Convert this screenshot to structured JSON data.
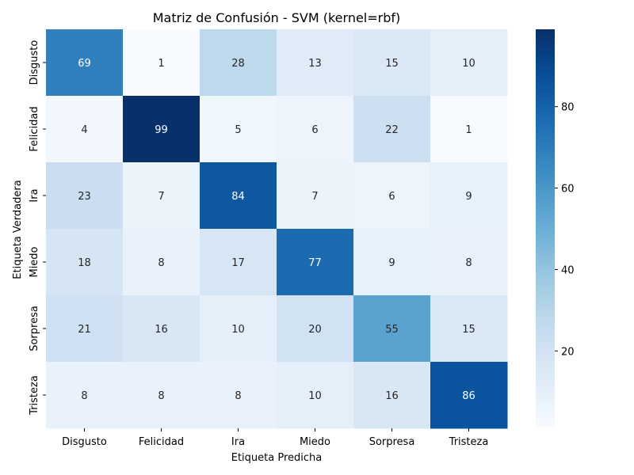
{
  "chart_data": {
    "type": "heatmap",
    "title": "Matriz de Confusión - SVM (kernel=rbf)",
    "xlabel": "Etiqueta Predicha",
    "ylabel": "Etiqueta Verdadera",
    "x_categories": [
      "Disgusto",
      "Felicidad",
      "Ira",
      "Miedo",
      "Sorpresa",
      "Tristeza"
    ],
    "y_categories": [
      "Disgusto",
      "Felicidad",
      "Ira",
      "Miedo",
      "Sorpresa",
      "Tristeza"
    ],
    "values": [
      [
        69,
        1,
        28,
        13,
        15,
        10
      ],
      [
        4,
        99,
        5,
        6,
        22,
        1
      ],
      [
        23,
        7,
        84,
        7,
        6,
        9
      ],
      [
        18,
        8,
        17,
        77,
        9,
        8
      ],
      [
        21,
        16,
        10,
        20,
        55,
        15
      ],
      [
        8,
        8,
        8,
        10,
        16,
        86
      ]
    ],
    "colormap": "Blues",
    "color_range": [
      1,
      99
    ],
    "colorbar_ticks": [
      20,
      40,
      60,
      80
    ]
  }
}
